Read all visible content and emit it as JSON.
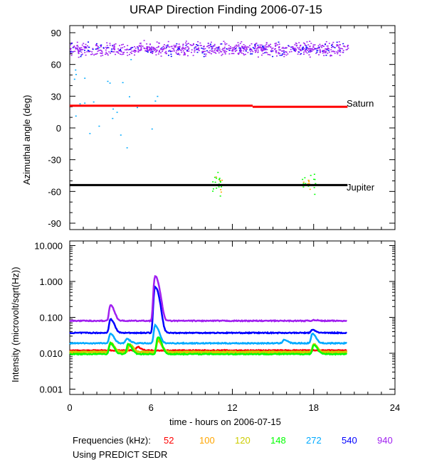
{
  "chart_data": [
    {
      "type": "scatter",
      "title": "URAP Direction Finding  2006-07-15",
      "ylabel": "Azimuthal angle (deg)",
      "ylim": [
        -95,
        95
      ],
      "xlim": [
        0,
        24
      ],
      "yticks": [
        "90",
        "60",
        "30",
        "0",
        "-30",
        "-60",
        "-90"
      ],
      "reference_lines": [
        {
          "name": "Saturn",
          "segments": [
            {
              "x": [
                0,
                13.5
              ],
              "y": 21
            },
            {
              "x": [
                13.5,
                20.5
              ],
              "y": 20
            }
          ],
          "color": "#ff0000"
        },
        {
          "name": "Jupiter",
          "segments": [
            {
              "x": [
                0,
                20.5
              ],
              "y": -54
            }
          ],
          "color": "#000000"
        }
      ],
      "scatter_groups": [
        {
          "freq": "940",
          "x_range": [
            0,
            20.5
          ],
          "y_center": 75,
          "y_spread": 6
        },
        {
          "freq": "272",
          "x_range": [
            0.2,
            6.5
          ],
          "y_center": 25,
          "y_spread": 40
        },
        {
          "freq": "148",
          "x_range": [
            10.5,
            11.3
          ],
          "y_center": -52,
          "y_spread": 10
        },
        {
          "freq": "148",
          "x_range": [
            17,
            18.3
          ],
          "y_center": -52,
          "y_spread": 8
        }
      ]
    },
    {
      "type": "line",
      "ylabel": "Intensity (microvolt/sqrt(Hz))",
      "yscale": "log",
      "ylim": [
        0.0007,
        15
      ],
      "yticks": [
        "10.000",
        "1.000",
        "0.100",
        "0.010",
        "0.001"
      ],
      "xticks": [
        "0",
        "6",
        "12",
        "18",
        "24"
      ],
      "xlabel": "time - hours on 2006-07-15",
      "xlim": [
        0,
        24
      ],
      "series": [
        {
          "name": "52",
          "color": "#ff0000",
          "baseline": 0.012,
          "peaks": [
            [
              5.0,
              0.015
            ]
          ]
        },
        {
          "name": "100",
          "color": "#ffa500",
          "baseline": 0.0105,
          "peaks": [
            [
              3.0,
              0.018
            ],
            [
              4.4,
              0.016
            ],
            [
              6.5,
              0.022
            ],
            [
              18.0,
              0.017
            ]
          ]
        },
        {
          "name": "120",
          "color": "#cccc00",
          "baseline": 0.011,
          "peaks": [
            [
              3.0,
              0.02
            ],
            [
              4.4,
              0.018
            ],
            [
              6.5,
              0.025
            ],
            [
              18.0,
              0.018
            ]
          ]
        },
        {
          "name": "148",
          "color": "#00ff00",
          "baseline": 0.0095,
          "peaks": [
            [
              3.0,
              0.019
            ],
            [
              4.3,
              0.018
            ],
            [
              6.5,
              0.028
            ],
            [
              18.0,
              0.017
            ]
          ]
        },
        {
          "name": "272",
          "color": "#00aaff",
          "baseline": 0.019,
          "peaks": [
            [
              3.0,
              0.035
            ],
            [
              4.2,
              0.025
            ],
            [
              6.3,
              0.06
            ],
            [
              15.8,
              0.024
            ],
            [
              17.9,
              0.035
            ]
          ]
        },
        {
          "name": "540",
          "color": "#0000ff",
          "baseline": 0.037,
          "peaks": [
            [
              3.0,
              0.09
            ],
            [
              6.3,
              0.7
            ],
            [
              17.9,
              0.045
            ]
          ]
        },
        {
          "name": "940",
          "color": "#a020f0",
          "baseline": 0.08,
          "peaks": [
            [
              3.0,
              0.22
            ],
            [
              6.3,
              1.4
            ],
            [
              18.0,
              0.085
            ]
          ]
        }
      ]
    }
  ],
  "labels": {
    "saturn": "Saturn",
    "jupiter": "Jupiter",
    "legend_title": "Frequencies (kHz):",
    "source": "Using PREDICT SEDR"
  }
}
